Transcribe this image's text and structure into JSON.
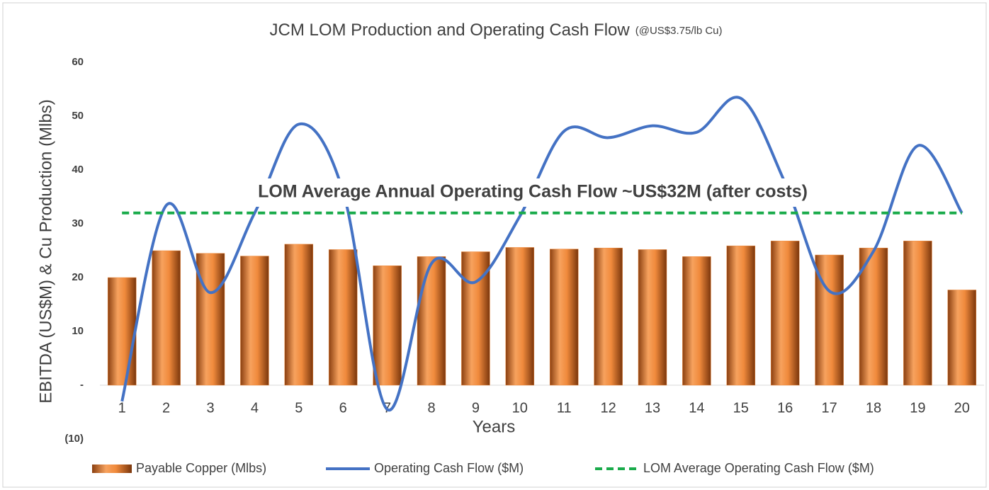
{
  "chart_data": {
    "type": "bar-line",
    "title": "JCM LOM Production and Operating Cash Flow",
    "subtitle": "(@US$3.75/lb Cu)",
    "y_label": "EBITDA (US$M) & Cu Production (Mlbs)",
    "x_label": "Years",
    "annotation": "LOM Average Annual Operating Cash Flow ~US$32M (after costs)",
    "categories": [
      "1",
      "2",
      "3",
      "4",
      "5",
      "6",
      "7",
      "8",
      "9",
      "10",
      "11",
      "12",
      "13",
      "14",
      "15",
      "16",
      "17",
      "18",
      "19",
      "20"
    ],
    "series": [
      {
        "name": "Payable Copper (Mlbs)",
        "type": "bar",
        "color": "#f08a3c",
        "values": [
          20,
          25,
          24.5,
          24,
          26.2,
          25.2,
          22.2,
          23.9,
          24.8,
          25.6,
          25.3,
          25.5,
          25.2,
          23.9,
          25.9,
          26.8,
          24.2,
          25.5,
          26.8,
          17.7
        ]
      },
      {
        "name": "Operating Cash Flow ($M)",
        "type": "line",
        "color": "#4472c4",
        "values": [
          -3,
          33.4,
          17.2,
          32,
          48.5,
          36,
          -4.5,
          22.6,
          19.2,
          31.4,
          47.2,
          46,
          48.2,
          47,
          53.3,
          37.6,
          17.5,
          24.9,
          44.5,
          32
        ]
      },
      {
        "name": "LOM Average Operating Cash Flow ($M)",
        "type": "dashed",
        "color": "#1aab4b",
        "values": [
          32,
          32,
          32,
          32,
          32,
          32,
          32,
          32,
          32,
          32,
          32,
          32,
          32,
          32,
          32,
          32,
          32,
          32,
          32,
          32
        ]
      }
    ],
    "ylim": [
      -10,
      60
    ],
    "yticks": [
      {
        "value": -10,
        "label": "(10)"
      },
      {
        "value": 0,
        "label": "-"
      },
      10,
      20,
      30,
      40,
      50,
      60
    ],
    "grid": false,
    "legend": "bottom"
  }
}
